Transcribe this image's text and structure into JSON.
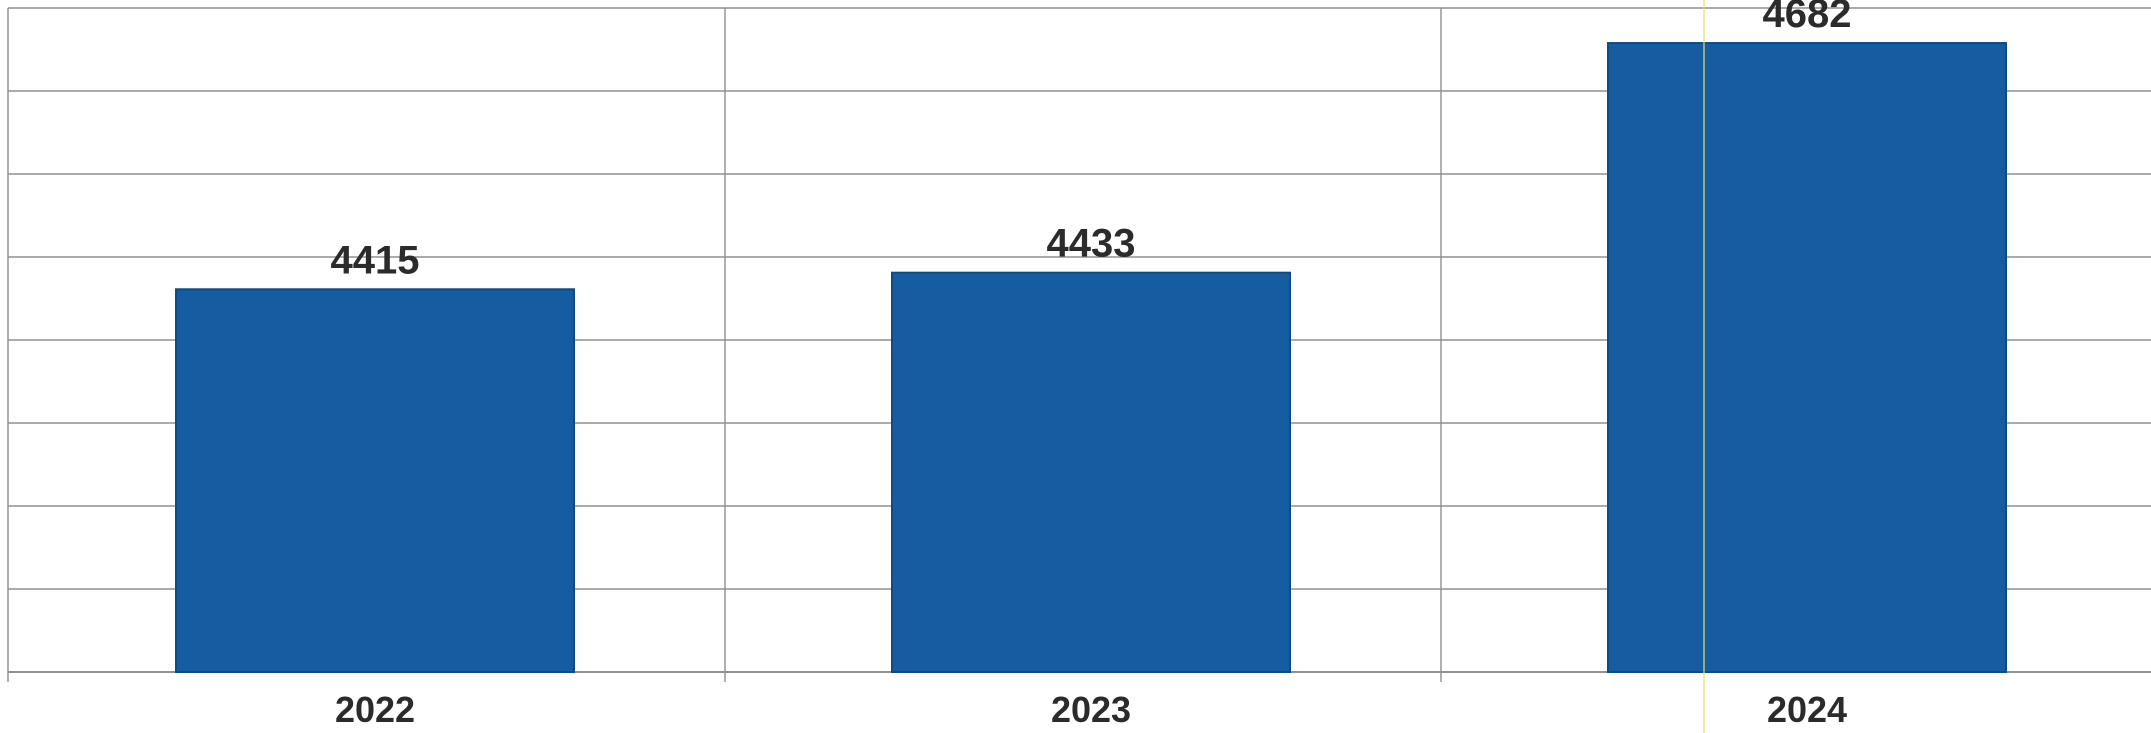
{
  "chart_data": {
    "type": "bar",
    "title": "",
    "xlabel": "",
    "ylabel": "",
    "categories": [
      "2022",
      "2023",
      "2024"
    ],
    "values": [
      4415,
      4433,
      4682
    ],
    "ylim": [
      4000,
      4720
    ],
    "grid": true,
    "legend": "none",
    "bar_color": "#155ca1",
    "data_labels": [
      "4415",
      "4433",
      "4682"
    ]
  }
}
